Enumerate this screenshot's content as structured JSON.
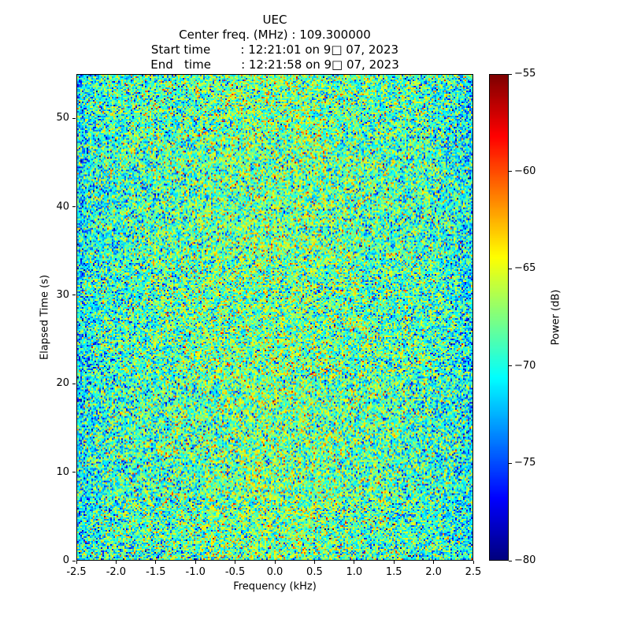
{
  "header": {
    "title": "UEC",
    "center_freq_line": "Center freq. (MHz) : 109.300000",
    "start_time_line": "Start time        : 12:21:01 on 9□ 07, 2023",
    "end_time_line": "End   time        : 12:21:58 on 9□ 07, 2023"
  },
  "chart_data": {
    "type": "heatmap",
    "title": "UEC",
    "subtitle_lines": [
      "Center freq. (MHz) : 109.300000",
      "Start time        : 12:21:01 on 9□ 07, 2023",
      "End   time        : 12:21:58 on 9□ 07, 2023"
    ],
    "xlabel": "Frequency (kHz)",
    "ylabel": "Elapsed Time (s)",
    "xlim": [
      -2.5,
      2.5
    ],
    "ylim": [
      0,
      55
    ],
    "xticks": [
      -2.5,
      -2.0,
      -1.5,
      -1.0,
      -0.5,
      0.0,
      0.5,
      1.0,
      1.5,
      2.0,
      2.5
    ],
    "xtick_labels": [
      "-2.5",
      "-2.0",
      "-1.5",
      "-1.0",
      "-0.5",
      "0.0",
      "0.5",
      "1.0",
      "1.5",
      "2.0",
      "2.5"
    ],
    "yticks": [
      0,
      10,
      20,
      30,
      40,
      50
    ],
    "ytick_labels": [
      "0",
      "10",
      "20",
      "30",
      "40",
      "50"
    ],
    "colormap": "jet",
    "colorbar": {
      "label": "Power (dB)",
      "min": -80,
      "max": -55,
      "ticks": [
        -55,
        -60,
        -65,
        -70,
        -75,
        -80
      ],
      "tick_labels": [
        "−55",
        "−60",
        "−65",
        "−70",
        "−75",
        "−80"
      ]
    },
    "noise": {
      "description": "Broadband random noise spectrogram; power speckle distributed around the mean with slight brightening near 0 kHz and slight roll-off at band edges",
      "mean_db": -69,
      "std_db": 3.5,
      "center_boost_db": 1.2,
      "center_sigma_frac": 0.35,
      "edge_rolloff_db": 2.0,
      "seed": 20230907,
      "cols": 251,
      "rows": 307
    },
    "grid": false,
    "legend": "none"
  }
}
